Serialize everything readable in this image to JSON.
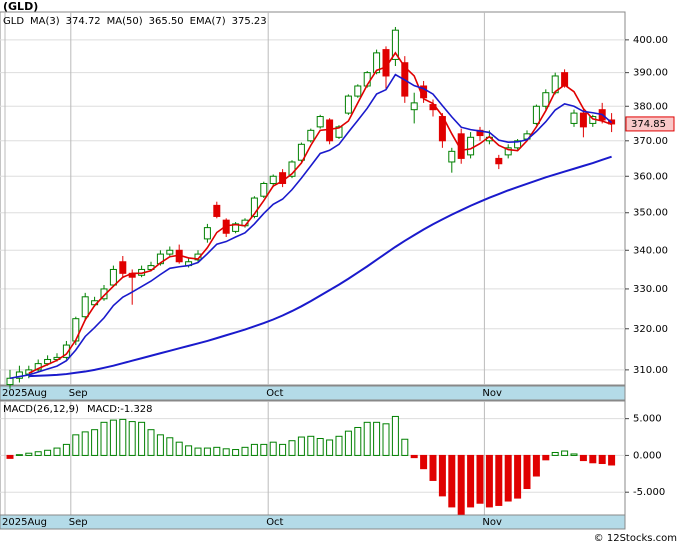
{
  "chart_data": [
    {
      "type": "candlestick",
      "title": "(GLD)",
      "symbol": "GLD",
      "categories": [
        "2025Aug",
        null,
        null,
        null,
        null,
        null,
        null,
        "Sep",
        null,
        null,
        null,
        null,
        null,
        null,
        null,
        null,
        null,
        null,
        null,
        null,
        null,
        null,
        null,
        null,
        null,
        null,
        null,
        null,
        "Oct",
        null,
        null,
        null,
        null,
        null,
        null,
        null,
        null,
        null,
        null,
        null,
        null,
        null,
        null,
        null,
        null,
        null,
        null,
        null,
        null,
        null,
        null,
        "Nov",
        null,
        null,
        null,
        null,
        null,
        null,
        null,
        null,
        null,
        null,
        null,
        null,
        null
      ],
      "open": [
        306.5,
        308,
        309,
        310,
        311.5,
        312.5,
        313,
        317,
        323,
        326,
        327.5,
        331,
        337,
        334,
        333.5,
        335,
        336.5,
        339,
        340,
        336,
        337.5,
        343,
        352,
        348,
        345,
        346.5,
        349,
        354.5,
        358,
        361,
        360,
        364.5,
        370,
        374,
        376,
        371,
        378,
        383,
        386,
        390,
        397,
        394,
        393,
        379,
        386,
        380.5,
        377,
        364,
        372,
        366,
        373,
        370,
        365,
        366,
        368,
        370.5,
        375,
        380,
        384,
        390,
        375,
        378,
        375,
        379,
        376
      ],
      "high": [
        310,
        311,
        311,
        312.5,
        313.5,
        314,
        317,
        323,
        329,
        328,
        331,
        336,
        338.5,
        335,
        336,
        337,
        340,
        341,
        341.5,
        338,
        340,
        347,
        353,
        348.5,
        347.5,
        348.5,
        354.5,
        358.5,
        360.5,
        362,
        364.5,
        369.5,
        373.5,
        377.5,
        376.5,
        374.5,
        383.5,
        386.5,
        390.5,
        397,
        398,
        404,
        395,
        384,
        387.5,
        382,
        378,
        368,
        373.5,
        372.5,
        374,
        373,
        366,
        369,
        370.5,
        373,
        380.5,
        385,
        390,
        391,
        379,
        379.5,
        377.5,
        381,
        378
      ],
      "low": [
        305.5,
        307,
        308,
        309.5,
        311,
        312,
        312.5,
        316,
        322,
        325.5,
        327,
        330.5,
        333,
        326,
        333,
        334.5,
        336,
        338.5,
        336.5,
        335.5,
        337,
        342,
        348.5,
        343.5,
        344.5,
        346,
        348.5,
        354,
        357,
        357,
        359.5,
        364,
        369.5,
        373.5,
        369,
        370.5,
        377.5,
        382.5,
        385.5,
        389.5,
        385,
        392,
        381,
        375,
        381,
        377,
        368,
        361,
        363.5,
        365,
        370,
        369,
        362,
        365,
        367.5,
        370,
        374.5,
        379,
        383.5,
        385.5,
        374,
        371,
        374,
        375,
        372.5
      ],
      "close": [
        308,
        309.5,
        310,
        311.5,
        312.5,
        313,
        316,
        322.5,
        328,
        327,
        330,
        335,
        334,
        333,
        335,
        336,
        339,
        340,
        337,
        337,
        339,
        346,
        349,
        344.5,
        347,
        348,
        354,
        358,
        360,
        358,
        364,
        369,
        373,
        377,
        370,
        374,
        383,
        386,
        390,
        396,
        389,
        403,
        383,
        381,
        382.5,
        379,
        370,
        367,
        365,
        371,
        371.5,
        371,
        363.5,
        368,
        370,
        372,
        380,
        384,
        389,
        386,
        378,
        374,
        377,
        376,
        374.85
      ],
      "up_color": "#008000",
      "down_color": "#e00000",
      "series": [
        {
          "name": "MA(3)",
          "legend_value": "374.72",
          "color": "#e00000",
          "values": [
            null,
            null,
            309.2,
            310.3,
            311.3,
            312.3,
            313.8,
            317.2,
            322.2,
            325.8,
            328.3,
            330.7,
            333,
            334,
            334,
            334.7,
            336.7,
            338.3,
            338.7,
            338,
            337.7,
            340.7,
            344.7,
            346.5,
            346.8,
            346.5,
            349.7,
            353.3,
            357.3,
            358.7,
            360.7,
            363.7,
            368.7,
            373,
            373.3,
            373.7,
            375.7,
            381,
            386.3,
            390.7,
            391.7,
            396,
            391.7,
            389,
            382.2,
            380.8,
            377.2,
            372,
            367.3,
            367.7,
            369.2,
            371.2,
            368.7,
            367.5,
            367.2,
            370,
            374,
            378.7,
            384.3,
            386.3,
            384.3,
            379.3,
            376.3,
            375.7,
            374.72
          ]
        },
        {
          "name": "MA(50)",
          "legend_value": "365.50",
          "color": "#1a1acc",
          "values": [
            null,
            null,
            308.5,
            308.6,
            308.7,
            308.8,
            309,
            309.3,
            309.6,
            310,
            310.5,
            311,
            311.6,
            312.2,
            312.8,
            313.4,
            314,
            314.6,
            315.2,
            315.8,
            316.4,
            317,
            317.7,
            318.4,
            319.1,
            319.8,
            320.6,
            321.4,
            322.3,
            323.3,
            324.4,
            325.6,
            326.9,
            328.3,
            329.7,
            331.1,
            332.6,
            334.2,
            335.8,
            337.5,
            339.2,
            340.9,
            342.5,
            344,
            345.5,
            346.9,
            348.2,
            349.5,
            350.7,
            351.9,
            353,
            354.1,
            355.1,
            356.1,
            357,
            357.9,
            358.8,
            359.7,
            360.5,
            361.3,
            362.1,
            362.9,
            363.7,
            364.6,
            365.5
          ]
        },
        {
          "name": "EMA(7)",
          "legend_value": "375.23",
          "color": "#1a1acc",
          "values": [
            308,
            308.4,
            308.8,
            309.5,
            310.2,
            310.9,
            312.2,
            314.8,
            318.1,
            320.3,
            322.7,
            325.8,
            327.9,
            329.2,
            330.6,
            332,
            333.7,
            335.3,
            335.7,
            336,
            336.8,
            339.1,
            341.6,
            342.3,
            343.5,
            344.6,
            347,
            349.8,
            352.3,
            353.7,
            356.3,
            359.5,
            362.9,
            366.4,
            367.3,
            369,
            372.5,
            375.9,
            379.4,
            383.6,
            384.9,
            389.4,
            387.8,
            386.1,
            385.2,
            383.6,
            380.2,
            376.9,
            373.9,
            373.2,
            372.8,
            372.4,
            370.2,
            369.6,
            369.7,
            370.3,
            372.7,
            375.5,
            378.9,
            380.7,
            380,
            378.5,
            378.1,
            377.6,
            375.23
          ]
        }
      ],
      "ylim": [
        306.4,
        408.7
      ],
      "yticks": [
        {
          "value": 310,
          "label": "310.00"
        },
        {
          "value": 320,
          "label": "320.00"
        },
        {
          "value": 330,
          "label": "330.00"
        },
        {
          "value": 340,
          "label": "340.00"
        },
        {
          "value": 350,
          "label": "350.00"
        },
        {
          "value": 360,
          "label": "360.00"
        },
        {
          "value": 370,
          "label": "370.00"
        },
        {
          "value": 380,
          "label": "380.00"
        },
        {
          "value": 390,
          "label": "390.00"
        },
        {
          "value": 400,
          "label": "400.00"
        }
      ],
      "log_scale": true,
      "grid": true
    },
    {
      "type": "bar",
      "title": "MACD(26,12,9)",
      "value_label": "MACD:-1.328",
      "categories": [
        "2025Aug",
        null,
        null,
        null,
        null,
        null,
        null,
        "Sep",
        null,
        null,
        null,
        null,
        null,
        null,
        null,
        null,
        null,
        null,
        null,
        null,
        null,
        null,
        null,
        null,
        null,
        null,
        null,
        null,
        "Oct",
        null,
        null,
        null,
        null,
        null,
        null,
        null,
        null,
        null,
        null,
        null,
        null,
        null,
        null,
        null,
        null,
        null,
        null,
        null,
        null,
        null,
        null,
        "Nov",
        null,
        null,
        null,
        null,
        null,
        null,
        null,
        null,
        null,
        null,
        null,
        null,
        null
      ],
      "values": [
        -0.4,
        0.1,
        0.3,
        0.5,
        0.7,
        1.0,
        1.5,
        2.8,
        3.2,
        3.5,
        4.5,
        4.8,
        4.9,
        4.6,
        4.5,
        3.5,
        2.8,
        2.4,
        1.8,
        1.3,
        1.0,
        1.0,
        1.1,
        0.9,
        0.8,
        1.1,
        1.5,
        1.5,
        1.8,
        1.5,
        2.0,
        2.5,
        2.6,
        2.3,
        2.1,
        2.6,
        3.3,
        3.8,
        4.5,
        4.5,
        4.3,
        5.3,
        2.2,
        -0.3,
        -1.8,
        -3.4,
        -5.5,
        -7.0,
        -8.0,
        -7.0,
        -6.5,
        -7.0,
        -6.8,
        -6.2,
        -5.8,
        -4.5,
        -2.8,
        -0.6,
        0.4,
        0.6,
        0.2,
        -0.7,
        -1.0,
        -1.1,
        -1.3
      ],
      "up_color": "#008000",
      "down_color": "#e00000",
      "ylim": [
        -8.1,
        7.4
      ],
      "yticks": [
        {
          "value": 5,
          "label": "5.000"
        },
        {
          "value": 0,
          "label": "0.000"
        },
        {
          "value": -5,
          "label": "-5.000"
        }
      ],
      "grid": true
    }
  ],
  "footer": "© 12Stocks.com"
}
